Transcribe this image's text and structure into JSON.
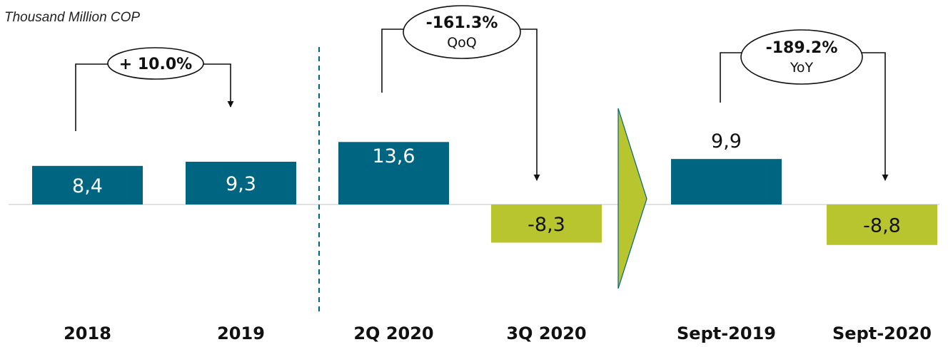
{
  "unit_label": "Thousand Million COP",
  "colors": {
    "positive": "#006580",
    "negative": "#b9c52f",
    "axis": "#d9d9d9",
    "divider": "#006580"
  },
  "chart_data": {
    "type": "bar",
    "categories": [
      "2018",
      "2019",
      "2Q 2020",
      "3Q 2020",
      "Sept-2019",
      "Sept-2020"
    ],
    "values": [
      8.4,
      9.3,
      13.6,
      -8.3,
      9.9,
      -8.8
    ],
    "value_labels": [
      "8,4",
      "9,3",
      "13,6",
      "-8,3",
      "9,9",
      "-8,8"
    ],
    "ylabel": "Thousand Million COP",
    "groups": [
      [
        "2018",
        "2019"
      ],
      [
        "2Q 2020",
        "3Q 2020"
      ],
      [
        "Sept-2019",
        "Sept-2020"
      ]
    ],
    "annotations": [
      {
        "from": "2018",
        "to": "2019",
        "percent": "+ 10.0%",
        "sublabel": ""
      },
      {
        "from": "2Q 2020",
        "to": "3Q 2020",
        "percent": "-161.3%",
        "sublabel": "QoQ"
      },
      {
        "from": "Sept-2019",
        "to": "Sept-2020",
        "percent": "-189.2%",
        "sublabel": "YoY"
      }
    ]
  }
}
